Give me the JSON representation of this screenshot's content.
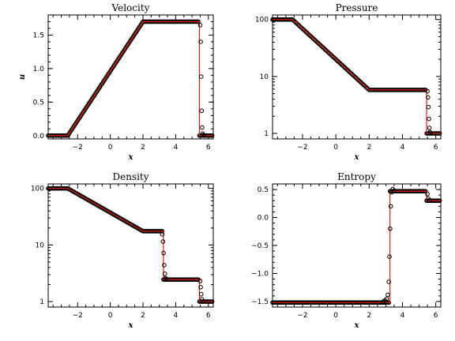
{
  "chart_data": [
    {
      "type": "line",
      "title": "Velocity",
      "xlabel": "x",
      "ylabel": "u",
      "xlim": [
        -3.8,
        6.3
      ],
      "ylim": [
        -0.05,
        1.8
      ],
      "xscale": "linear",
      "yscale": "linear",
      "xticks": [
        -2,
        0,
        2,
        4,
        6
      ],
      "yticks": [
        0.0,
        0.5,
        1.0,
        1.5
      ],
      "xtick_labels": [
        "−2",
        "0",
        "2",
        "4",
        "6"
      ],
      "ytick_labels": [
        "0.0",
        "0.5",
        "1.0",
        "1.5"
      ],
      "series": [
        {
          "kind": "line",
          "color": "#e02000",
          "x": [
            -3.8,
            -2.6,
            2.0,
            5.45,
            5.45,
            6.3
          ],
          "y": [
            0.0,
            0.0,
            1.7,
            1.7,
            0.0,
            0.0
          ]
        },
        {
          "kind": "markers",
          "color": "#000000",
          "x": [
            5.5,
            5.53,
            5.56,
            5.59,
            5.62,
            5.65,
            5.7
          ],
          "y": [
            1.65,
            1.4,
            0.88,
            0.37,
            0.12,
            0.03,
            0.01
          ]
        }
      ]
    },
    {
      "type": "line",
      "title": "Pressure",
      "xlabel": "x",
      "ylabel": "",
      "xlim": [
        -3.8,
        6.3
      ],
      "ylim": [
        0.8,
        120
      ],
      "xscale": "linear",
      "yscale": "log",
      "xticks": [
        -2,
        0,
        2,
        4,
        6
      ],
      "yticks": [
        1,
        10,
        100
      ],
      "xtick_labels": [
        "−2",
        "0",
        "2",
        "4",
        "6"
      ],
      "ytick_labels": [
        "1",
        "10",
        "100"
      ],
      "series": [
        {
          "kind": "line",
          "color": "#e02000",
          "x": [
            -3.8,
            -2.6,
            2.0,
            5.45,
            5.45,
            6.3
          ],
          "y": [
            100,
            100,
            5.8,
            5.8,
            1.0,
            1.0
          ]
        },
        {
          "kind": "markers",
          "color": "#000000",
          "x": [
            5.5,
            5.53,
            5.56,
            5.59,
            5.62,
            5.65,
            5.7
          ],
          "y": [
            5.5,
            4.3,
            2.9,
            1.8,
            1.25,
            1.05,
            1.0
          ]
        }
      ]
    },
    {
      "type": "line",
      "title": "Density",
      "xlabel": "x",
      "ylabel": "",
      "xlim": [
        -3.8,
        6.3
      ],
      "ylim": [
        0.8,
        120
      ],
      "xscale": "linear",
      "yscale": "log",
      "xticks": [
        -2,
        0,
        2,
        4,
        6
      ],
      "yticks": [
        1,
        10,
        100
      ],
      "xtick_labels": [
        "−2",
        "0",
        "2",
        "4",
        "6"
      ],
      "ytick_labels": [
        "1",
        "10",
        "100"
      ],
      "series": [
        {
          "kind": "line",
          "color": "#e02000",
          "x": [
            -3.8,
            -2.6,
            2.0,
            3.25,
            3.25,
            5.45,
            5.45,
            6.3
          ],
          "y": [
            100,
            100,
            17.5,
            17.5,
            2.45,
            2.45,
            1.0,
            1.0
          ]
        },
        {
          "kind": "markers",
          "color": "#000000",
          "x": [
            3.18,
            3.22,
            3.26,
            3.3,
            3.34,
            3.38,
            3.42,
            5.5,
            5.53,
            5.56,
            5.6,
            5.66
          ],
          "y": [
            15.5,
            11.5,
            7.2,
            4.4,
            3.1,
            2.6,
            2.5,
            2.3,
            1.8,
            1.35,
            1.1,
            1.0
          ]
        }
      ]
    },
    {
      "type": "line",
      "title": "Entropy",
      "xlabel": "x",
      "ylabel": "",
      "xlim": [
        -3.8,
        6.3
      ],
      "ylim": [
        -1.6,
        0.6
      ],
      "xscale": "linear",
      "yscale": "linear",
      "xticks": [
        -2,
        0,
        2,
        4,
        6
      ],
      "yticks": [
        -1.5,
        -1.0,
        -0.5,
        0.0,
        0.5
      ],
      "xtick_labels": [
        "−2",
        "0",
        "2",
        "4",
        "6"
      ],
      "ytick_labels": [
        "−1.5",
        "−1.0",
        "−0.5",
        "0.0",
        "0.5"
      ],
      "series": [
        {
          "kind": "line",
          "color": "#e02000",
          "x": [
            -3.8,
            3.25,
            3.25,
            5.45,
            5.45,
            6.3
          ],
          "y": [
            -1.52,
            -1.52,
            0.47,
            0.47,
            0.3,
            0.3
          ]
        },
        {
          "kind": "markers",
          "color": "#000000",
          "x": [
            2.85,
            2.95,
            3.05,
            3.12,
            3.18,
            3.22,
            3.26,
            3.3,
            3.35,
            3.42,
            3.5,
            5.5,
            5.55,
            5.62
          ],
          "y": [
            -1.5,
            -1.48,
            -1.45,
            -1.38,
            -1.15,
            -0.7,
            -0.2,
            0.2,
            0.45,
            0.51,
            0.48,
            0.42,
            0.34,
            0.31
          ]
        }
      ]
    }
  ]
}
